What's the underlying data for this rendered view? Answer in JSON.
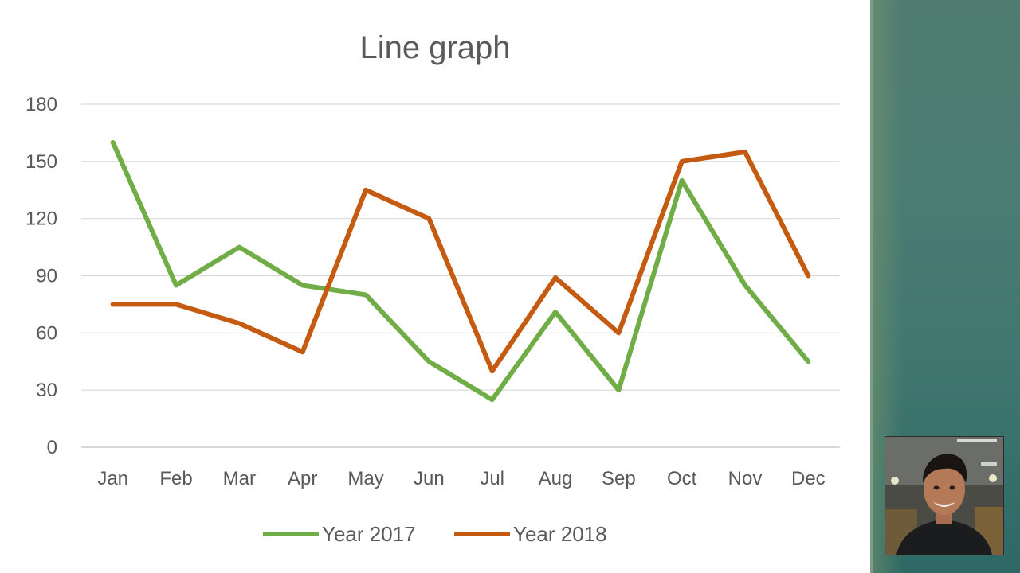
{
  "chart_data": {
    "type": "line",
    "title": "Line graph",
    "xlabel": "",
    "ylabel": "",
    "categories": [
      "Jan",
      "Feb",
      "Mar",
      "Apr",
      "May",
      "Jun",
      "Jul",
      "Aug",
      "Sep",
      "Oct",
      "Nov",
      "Dec"
    ],
    "series": [
      {
        "name": "Year 2017",
        "color": "#70ad47",
        "values": [
          160,
          85,
          105,
          85,
          80,
          45,
          25,
          71,
          30,
          140,
          85,
          45
        ]
      },
      {
        "name": "Year 2018",
        "color": "#c55a11",
        "values": [
          75,
          75,
          65,
          50,
          135,
          120,
          40,
          89,
          60,
          150,
          155,
          90
        ]
      }
    ],
    "ylim": [
      0,
      180
    ],
    "yticks": [
      "0",
      "30",
      "60",
      "90",
      "120",
      "150",
      "180"
    ],
    "grid": true,
    "legend": "bottom"
  },
  "colors": {
    "gridline": "#d9d9d9",
    "axis": "#d9d9d9",
    "text": "#595959"
  },
  "presenter": {
    "icon": "person-photo-icon"
  }
}
